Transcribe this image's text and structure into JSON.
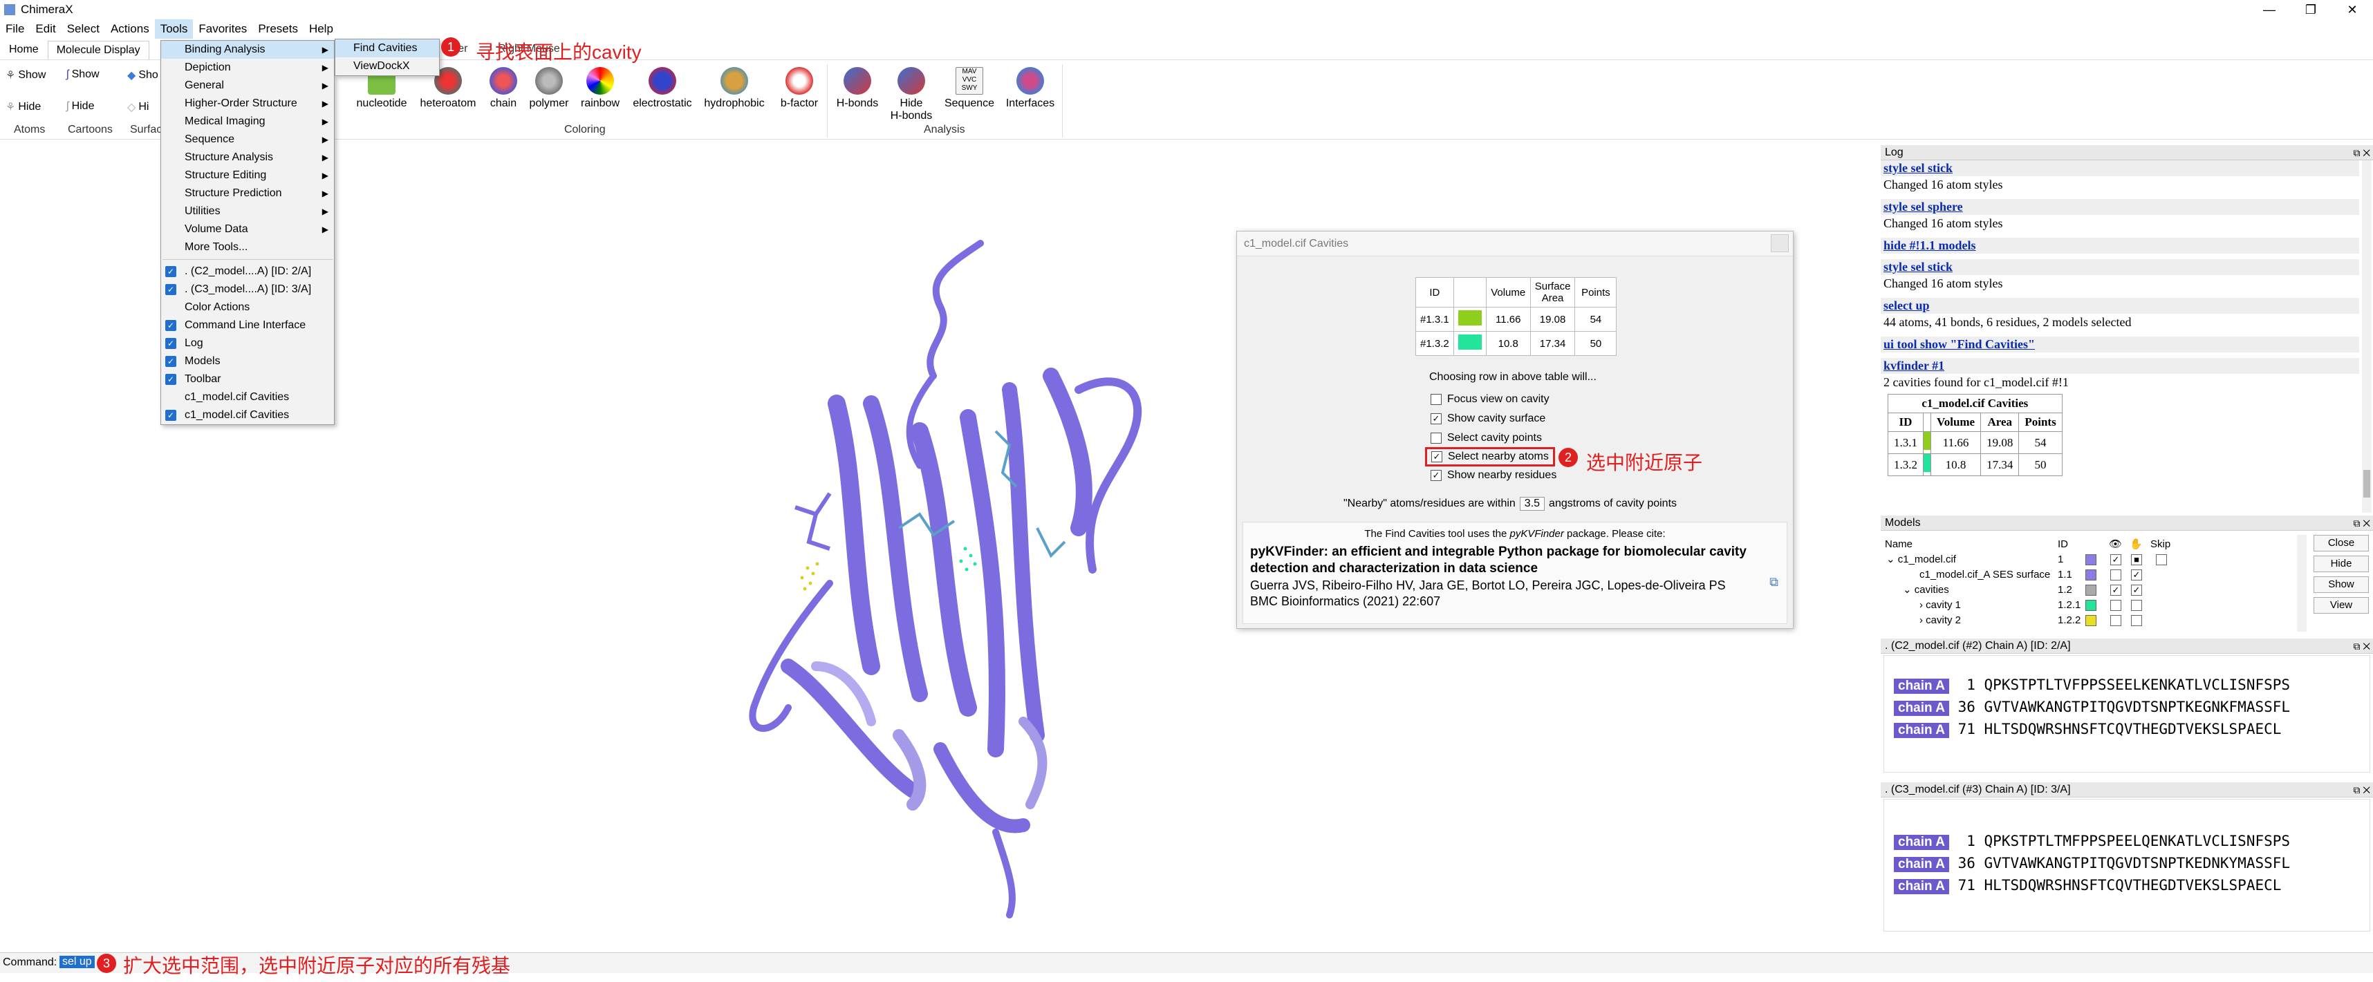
{
  "window": {
    "title": "ChimeraX",
    "controls": [
      "—",
      "❐",
      "✕"
    ]
  },
  "menubar": [
    "File",
    "Edit",
    "Select",
    "Actions",
    "Tools",
    "Favorites",
    "Presets",
    "Help"
  ],
  "tabs": [
    "Home",
    "Molecule Display"
  ],
  "toolbar": {
    "atoms": {
      "show": "Show",
      "hide": "Hide",
      "label": "Atoms"
    },
    "cartoons": {
      "show": "Show",
      "hide": "Hide",
      "label": "Cartoons"
    },
    "surfaces": {
      "show": "Sho",
      "hide": "Hi",
      "label": "Surfac"
    },
    "partial_tabs": [
      "arker",
      "Right Mouse"
    ],
    "coloring_buttons": [
      "nucleotide",
      "heteroatom",
      "chain",
      "polymer",
      "rainbow",
      "electrostatic",
      "hydrophobic",
      "b-factor"
    ],
    "coloring_label": "Coloring",
    "analysis_buttons": [
      "H-bonds",
      "Hide\nH-bonds",
      "Sequence",
      "Interfaces"
    ],
    "analysis_label": "Analysis"
  },
  "tools_menu": {
    "items": [
      {
        "label": "Binding Analysis",
        "submenu": true,
        "highlighted": true
      },
      {
        "label": "Depiction",
        "submenu": true
      },
      {
        "label": "General",
        "submenu": true
      },
      {
        "label": "Higher-Order Structure",
        "submenu": true
      },
      {
        "label": "Medical Imaging",
        "submenu": true
      },
      {
        "label": "Sequence",
        "submenu": true
      },
      {
        "label": "Structure Analysis",
        "submenu": true
      },
      {
        "label": "Structure Editing",
        "submenu": true
      },
      {
        "label": "Structure Prediction",
        "submenu": true
      },
      {
        "label": "Utilities",
        "submenu": true
      },
      {
        "label": "Volume Data",
        "submenu": true
      },
      {
        "label": "More Tools..."
      }
    ],
    "checked_items": [
      {
        "label": ". (C2_model....A) [ID: 2/A]",
        "checked": true
      },
      {
        "label": ". (C3_model....A) [ID: 3/A]",
        "checked": true
      },
      {
        "label": "Color Actions",
        "checked": false
      },
      {
        "label": "Command Line Interface",
        "checked": true
      },
      {
        "label": "Log",
        "checked": true
      },
      {
        "label": "Models",
        "checked": true
      },
      {
        "label": "Toolbar",
        "checked": true
      },
      {
        "label": "c1_model.cif Cavities",
        "checked": false
      },
      {
        "label": "c1_model.cif Cavities",
        "checked": true
      }
    ]
  },
  "binding_submenu": [
    "Find Cavities",
    "ViewDockX"
  ],
  "annotations": [
    {
      "num": "1",
      "text": "寻找表面上的cavity"
    },
    {
      "num": "2",
      "text": "选中附近原子"
    },
    {
      "num": "3",
      "text": "扩大选中范围，选中附近原子对应的所有残基"
    }
  ],
  "cavities_dialog": {
    "title": "c1_model.cif Cavities",
    "columns": [
      "ID",
      "",
      "Volume",
      "Surface\nArea",
      "Points"
    ],
    "rows": [
      {
        "id": "#1.3.1",
        "color": "#8fce1a",
        "volume": "11.66",
        "area": "19.08",
        "points": "54"
      },
      {
        "id": "#1.3.2",
        "color": "#22e49a",
        "volume": "10.8",
        "area": "17.34",
        "points": "50"
      }
    ],
    "choose_text": "Choosing row in above table will...",
    "options": [
      {
        "label": "Focus view on cavity",
        "checked": false
      },
      {
        "label": "Show cavity surface",
        "checked": true
      },
      {
        "label": "Select cavity points",
        "checked": false
      },
      {
        "label": "Select nearby atoms",
        "checked": true
      },
      {
        "label": "Show nearby residues",
        "checked": true
      }
    ],
    "nearby_prefix": "\"Nearby\" atoms/residues are within",
    "nearby_value": "3.5",
    "nearby_suffix": "angstroms of cavity points",
    "cite_prefix": "The Find Cavities tool uses the",
    "cite_pkg": "pyKVFinder",
    "cite_suffix": "package. Please cite:",
    "paper_title": "pyKVFinder: an efficient and integrable Python package for biomolecular cavity detection and characterization in data science",
    "paper_authors": "Guerra JVS, Ribeiro-Filho HV, Jara GE, Bortot LO, Pereira JGC, Lopes-de-Oliveira PS",
    "paper_journal": "BMC Bioinformatics (2021) 22:607"
  },
  "log": {
    "title": "Log",
    "entries": [
      {
        "type": "cmd",
        "text": "style sel stick"
      },
      {
        "type": "txt",
        "text": "Changed 16 atom styles"
      },
      {
        "type": "cmd",
        "text": "style sel sphere"
      },
      {
        "type": "txt",
        "text": "Changed 16 atom styles"
      },
      {
        "type": "cmd",
        "text": "hide #!1.1 models"
      },
      {
        "type": "cmd",
        "text": "style sel stick"
      },
      {
        "type": "txt",
        "text": "Changed 16 atom styles"
      },
      {
        "type": "cmd",
        "text": "select up"
      },
      {
        "type": "txt",
        "text": "44 atoms, 41 bonds, 6 residues, 2 models selected"
      },
      {
        "type": "cmd",
        "text": "ui tool show \"Find Cavities\""
      },
      {
        "type": "cmd",
        "text": "kvfinder #1"
      },
      {
        "type": "txt",
        "text": "2 cavities found for c1_model.cif #!1"
      }
    ],
    "table_title": "c1_model.cif Cavities",
    "table_cols": [
      "ID",
      "",
      "Volume",
      "Area",
      "Points"
    ],
    "table_rows": [
      {
        "id": "1.3.1",
        "color": "#8fce1a",
        "volume": "11.66",
        "area": "19.08",
        "points": "54"
      },
      {
        "id": "1.3.2",
        "color": "#22e49a",
        "volume": "10.8",
        "area": "17.34",
        "points": "50"
      }
    ]
  },
  "models": {
    "title": "Models",
    "cols": {
      "name": "Name",
      "id": "ID",
      "skip": "Skip"
    },
    "rows": [
      {
        "name": "c1_model.cif",
        "id": "1",
        "color": "#8a7ee6"
      },
      {
        "name": "c1_model.cif_A SES surface",
        "id": "1.1",
        "color": "#8a7ee6"
      },
      {
        "name": "cavities",
        "id": "1.2",
        "color": "#aaaaaa"
      },
      {
        "name": "cavity 1",
        "id": "1.2.1",
        "color": "#22e49a"
      },
      {
        "name": "cavity 2",
        "id": "1.2.2",
        "color": "#e8e020"
      }
    ],
    "buttons": [
      "Close",
      "Hide",
      "Show",
      "View"
    ]
  },
  "seq1": {
    "title": ". (C2_model.cif (#2) Chain A) [ID: 2/A]",
    "lines": [
      {
        "chain": "chain A",
        "num": " 1",
        "seq": "QPKSTPTLTVFPPSSEELKENKATLVCLISNFSPS"
      },
      {
        "chain": "chain A",
        "num": "36",
        "seq": "GVTVAWKANGTPITQGVDTSNPTKEGNKFMASSFL"
      },
      {
        "chain": "chain A",
        "num": "71",
        "seq": "HLTSDQWRSHNSFTCQVTHEGDTVEKSLSPAECL"
      }
    ]
  },
  "seq2": {
    "title": ". (C3_model.cif (#3) Chain A) [ID: 3/A]",
    "lines": [
      {
        "chain": "chain A",
        "num": " 1",
        "seq": "QPKSTPTLTMFPPSPEELQENKATLVCLISNFSPS"
      },
      {
        "chain": "chain A",
        "num": "36",
        "seq": "GVTVAWKANGTPITQGVDTSNPTKEDNKYMASSFL"
      },
      {
        "chain": "chain A",
        "num": "71",
        "seq": "HLTSDQWRSHNSFTCQVTHEGDTVEKSLSPAECL"
      }
    ]
  },
  "command": {
    "label": "Command:",
    "value": "sel up"
  }
}
